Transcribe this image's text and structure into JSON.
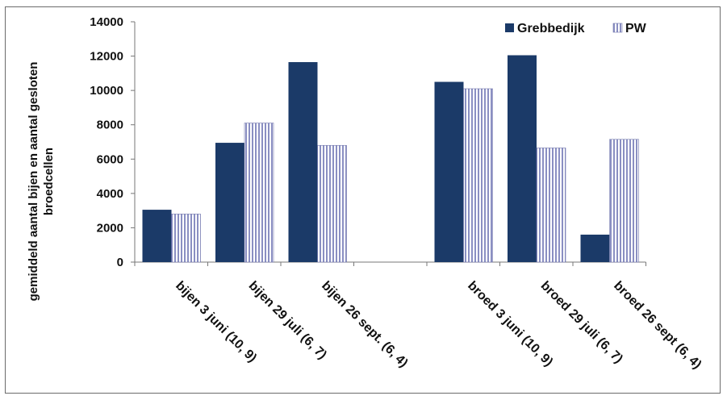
{
  "chart_data": {
    "type": "bar",
    "title": "",
    "ylabel": "gemiddeld aantal bijen en aantal gesloten broedcellen",
    "ylabel_lines": [
      "gemiddeld aantal bijen en aantal gesloten",
      "broedcellen"
    ],
    "xlabel": "",
    "ylim": [
      0,
      14000
    ],
    "yticks": [
      0,
      2000,
      4000,
      6000,
      8000,
      10000,
      12000,
      14000
    ],
    "grid": false,
    "legend_position": "top-right",
    "categories": [
      "bijen 3 juni (10, 9)",
      "bijen 29 juli (6, 7)",
      "bijen 26 sept. (6, 4)",
      "",
      "broed 3 juni (10, 9)",
      "broed 29 juli (6, 7)",
      "broed 26 sept (6, 4)"
    ],
    "series": [
      {
        "name": "Grebbedijk",
        "color": "#1b3a68",
        "pattern": "solid",
        "values": [
          3050,
          6950,
          11650,
          null,
          10500,
          12050,
          1600
        ]
      },
      {
        "name": "PW",
        "color": "#8a8fc2",
        "pattern": "vertical-stripes",
        "values": [
          2800,
          8100,
          6800,
          null,
          10100,
          6650,
          7150
        ]
      }
    ]
  }
}
